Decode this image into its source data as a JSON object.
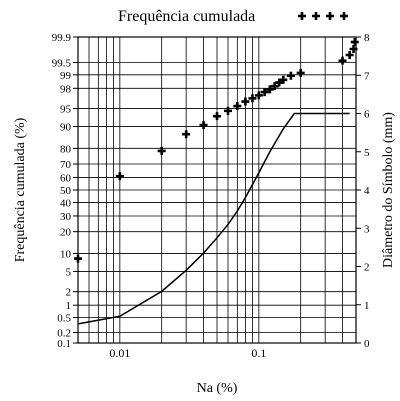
{
  "chart_data": {
    "type": "scatter",
    "legend": {
      "label": "Frequência cumulada",
      "marker": "plus",
      "placement": "top"
    },
    "xlabel": "Na (%)",
    "ylabel_left": "Frequência cumulada (%)",
    "ylabel_right": "Diâmetro do Símbolo (mm)",
    "x_scale": "log",
    "x_ticks": [
      {
        "value": 0.01,
        "label": "0.01"
      },
      {
        "value": 0.1,
        "label": "0.1"
      }
    ],
    "xlim": [
      0.005,
      0.5
    ],
    "y_left_scale": "probability",
    "ylim_left": [
      0.1,
      99.9
    ],
    "y_left_ticks": [
      "0.1",
      "0.2",
      "0.5",
      "1",
      "2",
      "5",
      "10",
      "20",
      "30",
      "40",
      "50",
      "60",
      "70",
      "80",
      "90",
      "95",
      "98",
      "99",
      "99.5",
      "99.9"
    ],
    "y_left_tick_values": [
      0.1,
      0.2,
      0.5,
      1,
      2,
      5,
      10,
      20,
      30,
      40,
      50,
      60,
      70,
      80,
      90,
      95,
      98,
      99,
      99.5,
      99.9
    ],
    "ylim_right": [
      0,
      8
    ],
    "y_right_ticks": [
      "0",
      "1",
      "2",
      "3",
      "4",
      "5",
      "6",
      "7",
      "8"
    ],
    "grid": true,
    "series": [
      {
        "name": "Frequência cumulada",
        "kind": "points",
        "axis": "left",
        "color": "#000000",
        "points": [
          [
            0.005,
            8.3
          ],
          [
            0.01,
            61
          ],
          [
            0.02,
            78.5
          ],
          [
            0.03,
            87
          ],
          [
            0.04,
            90.5
          ],
          [
            0.05,
            93.2
          ],
          [
            0.06,
            94.5
          ],
          [
            0.07,
            95.5
          ],
          [
            0.08,
            96.3
          ],
          [
            0.09,
            96.8
          ],
          [
            0.1,
            97.2
          ],
          [
            0.11,
            97.6
          ],
          [
            0.12,
            97.9
          ],
          [
            0.13,
            98.2
          ],
          [
            0.14,
            98.5
          ],
          [
            0.15,
            98.7
          ],
          [
            0.17,
            98.95
          ],
          [
            0.2,
            99.1
          ],
          [
            0.4,
            99.55
          ],
          [
            0.45,
            99.68
          ],
          [
            0.48,
            99.78
          ],
          [
            0.49,
            99.86
          ]
        ]
      },
      {
        "name": "",
        "kind": "line",
        "axis": "right",
        "color": "#000000",
        "points": [
          [
            0.005,
            0.5
          ],
          [
            0.01,
            0.7
          ],
          [
            0.02,
            1.35
          ],
          [
            0.03,
            1.9
          ],
          [
            0.04,
            2.35
          ],
          [
            0.05,
            2.75
          ],
          [
            0.06,
            3.1
          ],
          [
            0.07,
            3.45
          ],
          [
            0.08,
            3.8
          ],
          [
            0.1,
            4.45
          ],
          [
            0.12,
            5.0
          ],
          [
            0.15,
            5.6
          ],
          [
            0.18,
            6.0
          ],
          [
            0.3,
            6.0
          ],
          [
            0.45,
            6.0
          ]
        ]
      }
    ]
  }
}
